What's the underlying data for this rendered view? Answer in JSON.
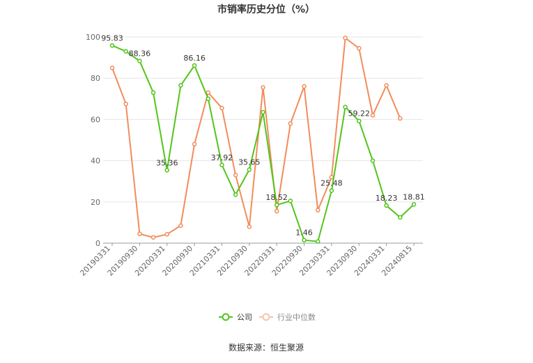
{
  "chart_data": {
    "type": "line",
    "title": "市销率历史分位（%）",
    "xlabel": "",
    "ylabel": "",
    "ylim": [
      0,
      100
    ],
    "yticks": [
      0,
      20,
      40,
      60,
      80,
      100
    ],
    "x_tick_labels": [
      "20190331",
      "20190930",
      "20200331",
      "20200930",
      "20210331",
      "20210930",
      "20220331",
      "20220930",
      "20230331",
      "20230930",
      "20240331",
      "20240815"
    ],
    "grid": true,
    "legend_position": "bottom-center",
    "series": [
      {
        "name": "公司",
        "color": "#52c41a",
        "values": [
          95.83,
          93.0,
          88.36,
          73.0,
          35.36,
          76.5,
          86.16,
          70.0,
          37.92,
          23.5,
          35.65,
          63.5,
          18.52,
          20.5,
          1.46,
          0.8,
          25.48,
          66.0,
          59.22,
          40.0,
          18.23,
          12.5,
          18.81
        ],
        "data_labels": {
          "0": "95.83",
          "2": "88.36",
          "4": "35.36",
          "6": "86.16",
          "8": "37.92",
          "10": "35.65",
          "12": "18.52",
          "14": "1.46",
          "16": "25.48",
          "18": "59.22",
          "20": "18.23",
          "22": "18.81"
        }
      },
      {
        "name": "行业中位数",
        "color": "#f28c5b",
        "values": [
          85.0,
          67.5,
          4.5,
          2.8,
          4.3,
          8.5,
          48.0,
          73.0,
          65.5,
          33.0,
          8.0,
          75.5,
          15.5,
          58.0,
          76.0,
          16.0,
          32.0,
          99.5,
          94.5,
          62.0,
          76.5,
          60.5,
          null
        ]
      }
    ],
    "source": "数据来源：恒生聚源"
  }
}
